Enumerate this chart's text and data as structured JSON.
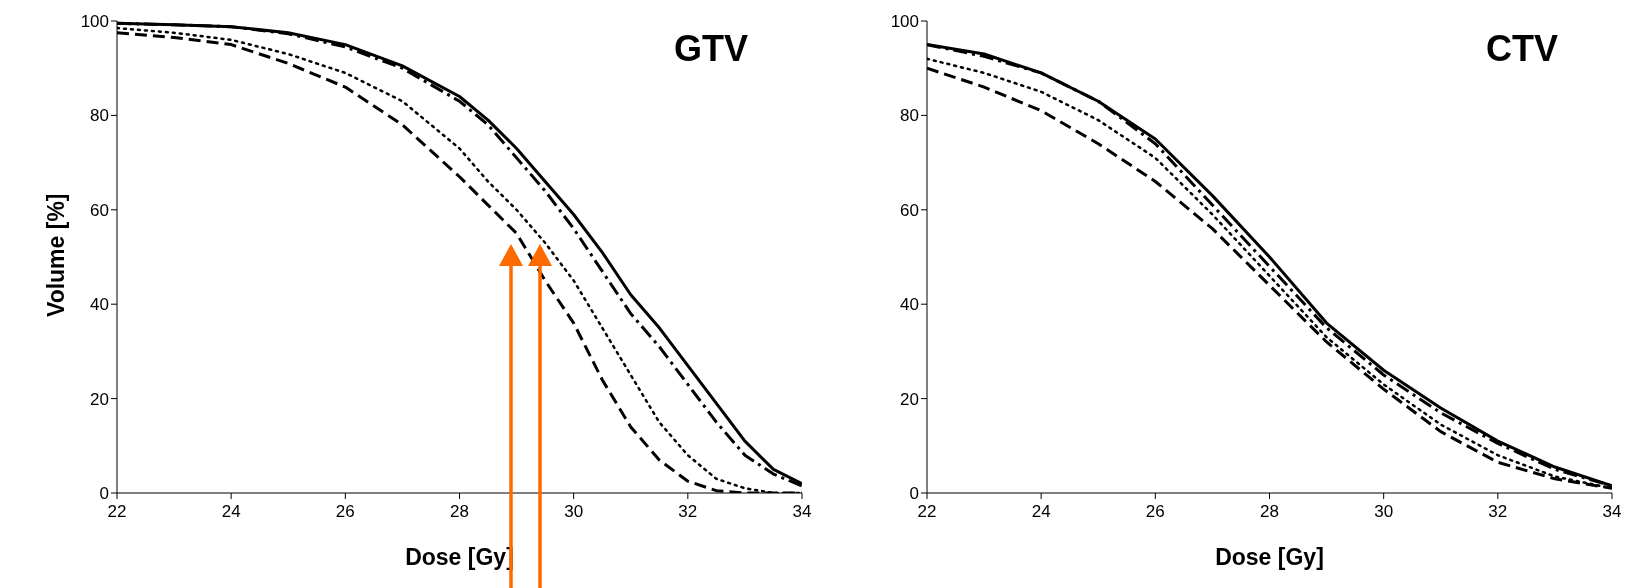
{
  "chart_data": [
    {
      "type": "line",
      "title": "GTV",
      "xlabel": "Dose [Gy]",
      "ylabel": "Volume [%]",
      "xlim": [
        22,
        34
      ],
      "xticks": [
        22,
        24,
        26,
        28,
        30,
        32,
        34
      ],
      "ylim": [
        0,
        100
      ],
      "yticks": [
        0,
        20,
        40,
        60,
        80,
        100
      ],
      "grid": false,
      "legend": false,
      "marker": "none",
      "series": [
        {
          "color": "#000000",
          "line_style": "solid",
          "x": [
            22,
            23,
            24,
            25,
            26,
            27,
            28,
            28.5,
            29,
            29.5,
            30,
            30.5,
            31,
            31.5,
            32,
            32.5,
            33,
            33.5,
            34
          ],
          "values": [
            99.5,
            99.2,
            98.8,
            97.5,
            95,
            90.5,
            84,
            79,
            73,
            66,
            59,
            51,
            42,
            35,
            27,
            19,
            11,
            5,
            2
          ]
        },
        {
          "color": "#000000",
          "line_style": "dashdot",
          "x": [
            22,
            23,
            24,
            25,
            26,
            27,
            28,
            28.5,
            29,
            29.5,
            30,
            30.5,
            31,
            31.5,
            32,
            32.5,
            33,
            33.5,
            34
          ],
          "values": [
            99.5,
            99.2,
            98.8,
            97.3,
            94.5,
            90,
            83,
            78,
            71,
            64,
            56,
            47,
            38,
            31,
            23,
            15,
            8,
            4,
            1.5
          ]
        },
        {
          "color": "#000000",
          "line_style": "dotted",
          "x": [
            22,
            23,
            24,
            25,
            26,
            27,
            28,
            28.5,
            29,
            29.5,
            30,
            30.5,
            31,
            31.5,
            32,
            32.5,
            33,
            33.5,
            34
          ],
          "values": [
            98.5,
            97.5,
            96,
            93,
            89,
            83,
            73,
            66,
            60,
            53,
            45,
            35,
            25,
            15,
            8,
            3,
            1,
            0,
            0
          ]
        },
        {
          "color": "#000000",
          "line_style": "dashed",
          "x": [
            22,
            23,
            24,
            25,
            26,
            27,
            28,
            28.5,
            29,
            29.5,
            30,
            30.5,
            31,
            31.5,
            32,
            32.5,
            33,
            33.5,
            34
          ],
          "values": [
            97.5,
            96.5,
            95,
            91,
            86,
            78,
            67,
            61,
            55,
            45,
            36,
            24,
            14,
            7,
            2.5,
            0.5,
            0,
            0,
            0
          ]
        }
      ]
    },
    {
      "type": "line",
      "title": "CTV",
      "xlabel": "Dose [Gy]",
      "xlim": [
        22,
        34
      ],
      "xticks": [
        22,
        24,
        26,
        28,
        30,
        32,
        34
      ],
      "ylim": [
        0,
        100
      ],
      "yticks": [
        0,
        20,
        40,
        60,
        80,
        100
      ],
      "grid": false,
      "legend": false,
      "marker": "none",
      "series": [
        {
          "color": "#000000",
          "line_style": "solid",
          "x": [
            22,
            23,
            24,
            25,
            26,
            27,
            28,
            29,
            30,
            31,
            32,
            33,
            34
          ],
          "values": [
            95,
            93,
            89,
            83,
            75,
            63,
            50,
            36,
            26,
            18,
            11,
            5.5,
            1.5
          ]
        },
        {
          "color": "#000000",
          "line_style": "dashdot",
          "x": [
            22,
            23,
            24,
            25,
            26,
            27,
            28,
            29,
            30,
            31,
            32,
            33,
            34
          ],
          "values": [
            95,
            92.5,
            89,
            83,
            74,
            61,
            48,
            35,
            25,
            17,
            10.5,
            5,
            1.5
          ]
        },
        {
          "color": "#000000",
          "line_style": "dotted",
          "x": [
            22,
            23,
            24,
            25,
            26,
            27,
            28,
            29,
            30,
            31,
            32,
            33,
            34
          ],
          "values": [
            92,
            89,
            85,
            79,
            71,
            59,
            46,
            33,
            23,
            14.5,
            8,
            3.5,
            1
          ]
        },
        {
          "color": "#000000",
          "line_style": "dashed",
          "x": [
            22,
            23,
            24,
            25,
            26,
            27,
            28,
            29,
            30,
            31,
            32,
            33,
            34
          ],
          "values": [
            90,
            86,
            81,
            74,
            66,
            56,
            44,
            32,
            22,
            13,
            6.5,
            3,
            1
          ]
        }
      ]
    }
  ]
}
